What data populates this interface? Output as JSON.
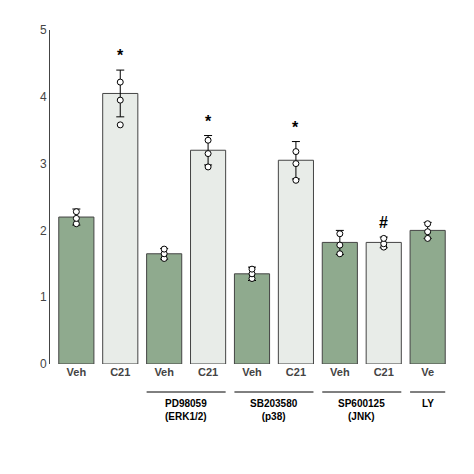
{
  "chart_data": {
    "type": "bar",
    "categories": [
      "Veh",
      "C21",
      "Veh",
      "C21",
      "Veh",
      "C21",
      "Veh",
      "C21",
      "Ve"
    ],
    "values": [
      2.2,
      4.05,
      1.65,
      3.2,
      1.35,
      3.05,
      1.82,
      1.82,
      2.0
    ],
    "errors": [
      0.12,
      0.35,
      0.08,
      0.22,
      0.1,
      0.28,
      0.18,
      0.08,
      0.12
    ],
    "points": [
      [
        2.1,
        2.18,
        2.28
      ],
      [
        3.58,
        3.95,
        4.22
      ],
      [
        1.58,
        1.65,
        1.72
      ],
      [
        2.95,
        3.15,
        3.35
      ],
      [
        1.28,
        1.35,
        1.42
      ],
      [
        2.75,
        3.0,
        3.18
      ],
      [
        1.65,
        1.78,
        1.95
      ],
      [
        1.75,
        1.8,
        1.88
      ],
      [
        1.88,
        1.98,
        2.1
      ]
    ],
    "colors": [
      "#8faa8e",
      "#e8ece8",
      "#8faa8e",
      "#e8ece8",
      "#8faa8e",
      "#e8ece8",
      "#8faa8e",
      "#e8ece8",
      "#8faa8e"
    ],
    "annotations": [
      {
        "text": "*",
        "index": 1
      },
      {
        "text": "*",
        "index": 3
      },
      {
        "text": "*",
        "index": 5
      },
      {
        "text": "#",
        "index": 7
      }
    ],
    "group_labels": [
      {
        "lines": [
          "PD98059",
          "(ERK1/2)"
        ],
        "from": 2,
        "to": 3
      },
      {
        "lines": [
          "SB203580",
          "(p38)"
        ],
        "from": 4,
        "to": 5
      },
      {
        "lines": [
          "SP600125",
          "(JNK)"
        ],
        "from": 6,
        "to": 7
      },
      {
        "lines": [
          "LY"
        ],
        "from": 8,
        "to": 8
      }
    ],
    "ylim": [
      0,
      5.0
    ],
    "yticks": [
      0,
      1,
      2,
      3,
      4,
      5
    ],
    "grid": false
  }
}
